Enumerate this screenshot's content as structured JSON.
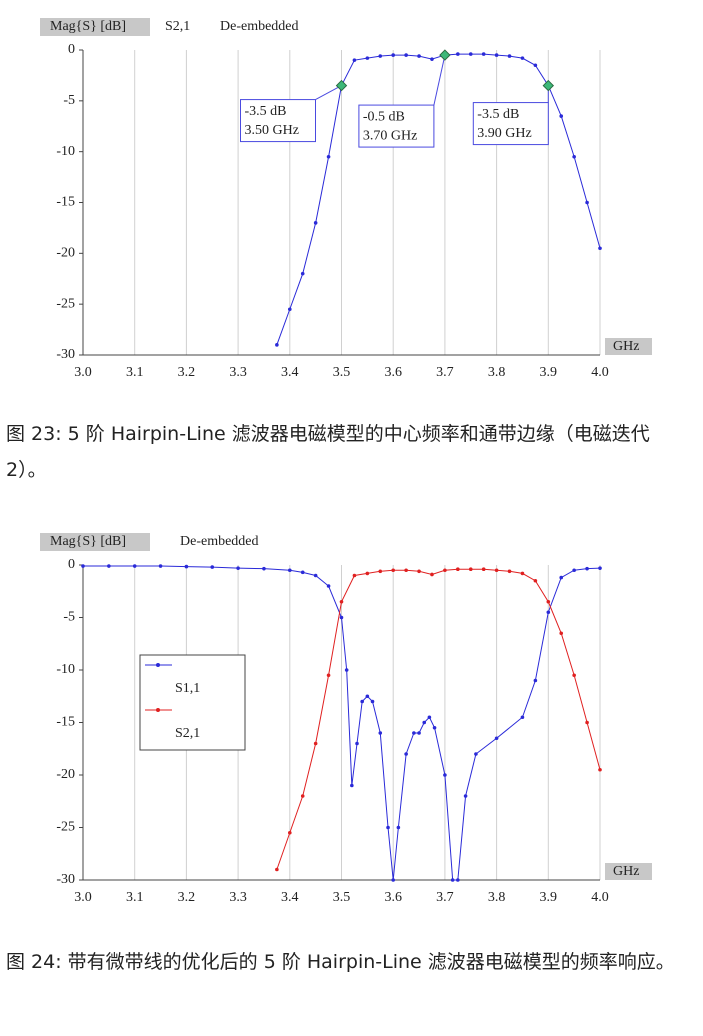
{
  "chart_data": [
    {
      "type": "line",
      "y_label": "Mag{S} [dB]",
      "subtitle": "De-embedded",
      "x_label": "GHz",
      "legend": false,
      "xlim": [
        3,
        4
      ],
      "xticks": [
        {
          "value": 3,
          "label": "3.0"
        },
        3.1,
        3.2,
        3.3,
        3.4,
        3.5,
        3.6,
        3.7,
        3.8,
        3.9,
        {
          "value": 4,
          "label": "4.0"
        }
      ],
      "ylim": [
        -30,
        0
      ],
      "yticks": [
        0,
        -5,
        -10,
        -15,
        -20,
        -25,
        -30
      ],
      "grid": true,
      "series": [
        {
          "name": "S2,1",
          "color": "#2a2ad8",
          "x": [
            3.375,
            3.4,
            3.425,
            3.45,
            3.475,
            3.5,
            3.525,
            3.55,
            3.575,
            3.6,
            3.625,
            3.65,
            3.675,
            3.7,
            3.725,
            3.75,
            3.775,
            3.8,
            3.825,
            3.85,
            3.875,
            3.9,
            3.925,
            3.95,
            3.975,
            4.0
          ],
          "values": [
            -29,
            -25.5,
            -22,
            -17,
            -10.5,
            -3.5,
            -1.0,
            -0.8,
            -0.6,
            -0.5,
            -0.5,
            -0.6,
            -0.9,
            -0.5,
            -0.4,
            -0.4,
            -0.4,
            -0.5,
            -0.6,
            -0.8,
            -1.5,
            -3.5,
            -6.5,
            -10.5,
            -15,
            -19.5
          ]
        }
      ],
      "annotations": [
        {
          "x": 3.5,
          "y": -3.5,
          "lines": [
            "-3.5 dB",
            "3.50 GHz"
          ]
        },
        {
          "x": 3.7,
          "y": -0.5,
          "lines": [
            "-0.5 dB",
            "3.70 GHz"
          ]
        },
        {
          "x": 3.9,
          "y": -3.5,
          "lines": [
            "-3.5 dB",
            "3.90 GHz"
          ]
        }
      ]
    },
    {
      "type": "line",
      "y_label": "Mag{S} [dB]",
      "subtitle": "De-embedded",
      "x_label": "GHz",
      "legend": true,
      "xlim": [
        3,
        4
      ],
      "xticks": [
        {
          "value": 3,
          "label": "3.0"
        },
        3.1,
        3.2,
        3.3,
        3.4,
        3.5,
        3.6,
        3.7,
        3.8,
        3.9,
        {
          "value": 4,
          "label": "4.0"
        }
      ],
      "ylim": [
        -30,
        0
      ],
      "yticks": [
        0,
        -5,
        -10,
        -15,
        -20,
        -25,
        -30
      ],
      "grid": true,
      "series": [
        {
          "name": "S1,1",
          "color": "#2a2ad8",
          "x": [
            3.0,
            3.05,
            3.1,
            3.15,
            3.2,
            3.25,
            3.3,
            3.35,
            3.4,
            3.425,
            3.45,
            3.475,
            3.5,
            3.51,
            3.52,
            3.53,
            3.54,
            3.55,
            3.56,
            3.575,
            3.59,
            3.6,
            3.61,
            3.625,
            3.64,
            3.65,
            3.66,
            3.67,
            3.68,
            3.7,
            3.715,
            3.725,
            3.74,
            3.76,
            3.8,
            3.85,
            3.875,
            3.9,
            3.925,
            3.95,
            3.975,
            4.0
          ],
          "values": [
            -0.1,
            -0.1,
            -0.1,
            -0.1,
            -0.15,
            -0.2,
            -0.3,
            -0.35,
            -0.5,
            -0.7,
            -1.0,
            -2,
            -5,
            -10,
            -21,
            -17,
            -13,
            -12.5,
            -13,
            -16,
            -25,
            -30,
            -25,
            -18,
            -16,
            -16,
            -15,
            -14.5,
            -15.5,
            -20,
            -30,
            -30,
            -22,
            -18,
            -16.5,
            -14.5,
            -11,
            -4.5,
            -1.2,
            -0.5,
            -0.35,
            -0.3
          ]
        },
        {
          "name": "S2,1",
          "color": "#e02020",
          "x": [
            3.375,
            3.4,
            3.425,
            3.45,
            3.475,
            3.5,
            3.525,
            3.55,
            3.575,
            3.6,
            3.625,
            3.65,
            3.675,
            3.7,
            3.725,
            3.75,
            3.775,
            3.8,
            3.825,
            3.85,
            3.875,
            3.9,
            3.925,
            3.95,
            3.975,
            4.0
          ],
          "values": [
            -29,
            -25.5,
            -22,
            -17,
            -10.5,
            -3.5,
            -1.0,
            -0.8,
            -0.6,
            -0.5,
            -0.5,
            -0.6,
            -0.9,
            -0.5,
            -0.4,
            -0.4,
            -0.4,
            -0.5,
            -0.6,
            -0.8,
            -1.5,
            -3.5,
            -6.5,
            -10.5,
            -15,
            -19.5
          ]
        }
      ]
    }
  ],
  "captions": [
    "图 23: 5 阶 Hairpin-Line 滤波器电磁模型的中心频率和通带边缘（电磁迭代 2）。",
    "图 24: 带有微带线的优化后的 5 阶 Hairpin-Line 滤波器电磁模型的频率响应。"
  ]
}
